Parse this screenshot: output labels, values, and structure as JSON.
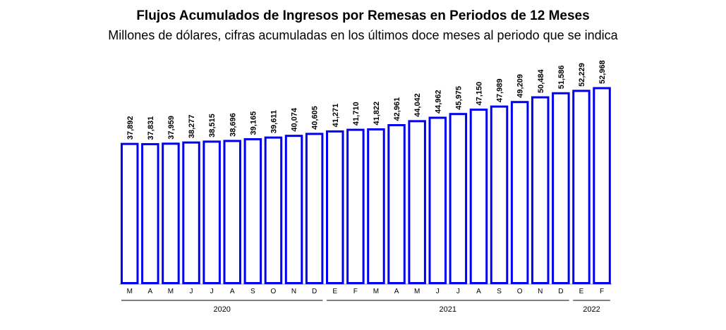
{
  "chart_data": {
    "type": "bar",
    "title": "Flujos Acumulados de Ingresos por Remesas en Periodos de 12 Meses",
    "subtitle": "Millones de dólares, cifras acumuladas en los últimos doce meses al periodo que se indica",
    "xlabel": "",
    "ylabel": "",
    "categories": [
      "M",
      "A",
      "M",
      "J",
      "J",
      "A",
      "S",
      "O",
      "N",
      "D",
      "E",
      "F",
      "M",
      "A",
      "M",
      "J",
      "J",
      "A",
      "S",
      "O",
      "N",
      "D",
      "E",
      "F"
    ],
    "values": [
      37892,
      37831,
      37959,
      38277,
      38515,
      38696,
      39165,
      39611,
      40074,
      40605,
      41271,
      41710,
      41822,
      42961,
      44042,
      44962,
      45975,
      47150,
      47989,
      49209,
      50484,
      51586,
      52229,
      52968
    ],
    "value_labels": [
      "37,892",
      "37,831",
      "37,959",
      "38,277",
      "38,515",
      "38,696",
      "39,165",
      "39,611",
      "40,074",
      "40,605",
      "41,271",
      "41,710",
      "41,822",
      "42,961",
      "44,042",
      "44,962",
      "45,975",
      "47,150",
      "47,989",
      "49,209",
      "50,484",
      "51,586",
      "52,229",
      "52,968"
    ],
    "year_groups": [
      {
        "label": "2020",
        "start": 0,
        "end": 9
      },
      {
        "label": "2021",
        "start": 10,
        "end": 21
      },
      {
        "label": "2022",
        "start": 22,
        "end": 23
      }
    ],
    "ylim": [
      0,
      55000
    ],
    "grid": false,
    "colors": {
      "bar_stroke": "#0000ee",
      "bar_fill": "#ffffff",
      "text": "#000000"
    }
  }
}
